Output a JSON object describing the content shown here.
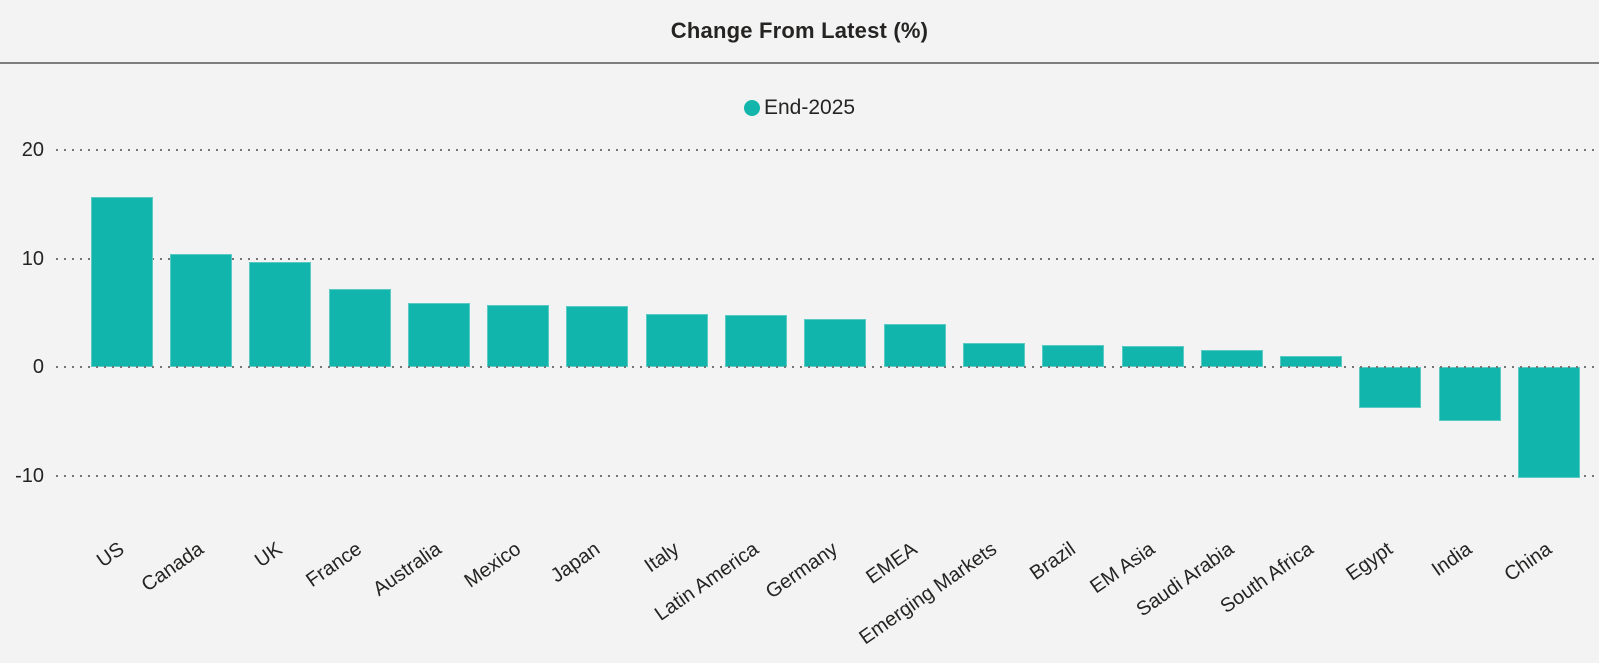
{
  "header": {
    "title": "Change From Latest (%)"
  },
  "legend": {
    "label": "End-2025",
    "marker": "circle-icon",
    "marker_color": "#12B5AB"
  },
  "colors": {
    "background": "#F3F3F3",
    "bar": "#12B5AB",
    "text": "#252423",
    "gridline": "#757575",
    "separator": "#7E7E7E"
  },
  "chart_data": {
    "type": "bar",
    "title": "Change From Latest (%)",
    "categories": [
      "US",
      "Canada",
      "UK",
      "France",
      "Australia",
      "Mexico",
      "Japan",
      "Italy",
      "Latin America",
      "Germany",
      "EMEA",
      "Emerging Markets",
      "Brazil",
      "EM Asia",
      "Saudi Arabia",
      "South Africa",
      "Egypt",
      "India",
      "China"
    ],
    "series": [
      {
        "name": "End-2025",
        "color": "#12B5AB",
        "values": [
          15.7,
          10.4,
          9.7,
          7.2,
          5.9,
          5.7,
          5.6,
          4.9,
          4.8,
          4.4,
          4.0,
          2.2,
          2.0,
          1.9,
          1.6,
          1.0,
          -3.8,
          -5.0,
          -10.2
        ]
      }
    ],
    "xlabel": "",
    "ylabel": "",
    "yticks": [
      20,
      10,
      0,
      -10
    ],
    "ylim": [
      -11.6,
      22.0
    ],
    "grid": "horizontal-dotted",
    "legend_position": "top-center",
    "x_label_rotation_deg": -35
  }
}
